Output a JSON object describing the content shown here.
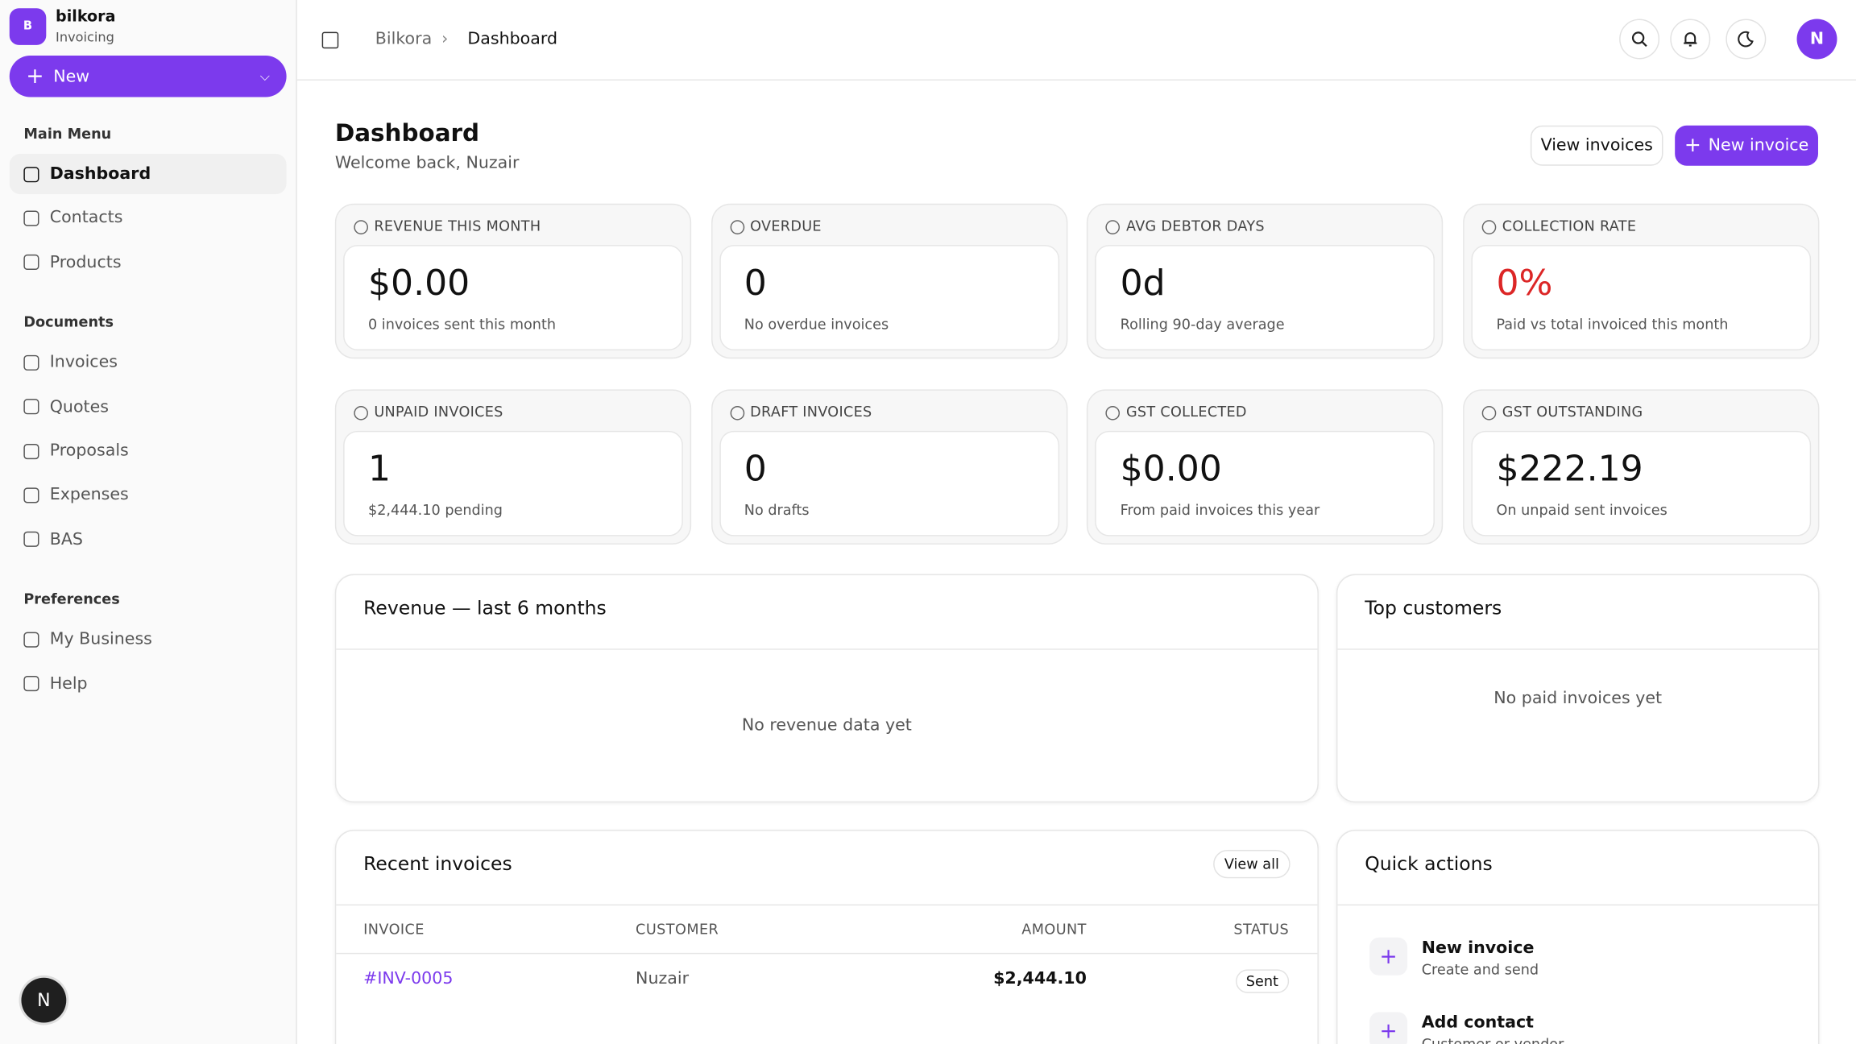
{
  "sidebar": {
    "brand": {
      "logo": "B",
      "name": "bilkora",
      "subtitle": "Invoicing"
    },
    "new_button": "New",
    "sections": [
      {
        "title": "Main Menu",
        "items": [
          "Dashboard",
          "Contacts",
          "Products"
        ]
      },
      {
        "title": "Documents",
        "items": [
          "Invoices",
          "Quotes",
          "Proposals",
          "Expenses",
          "BAS"
        ]
      },
      {
        "title": "Preferences",
        "items": [
          "My Business",
          "Help"
        ]
      }
    ],
    "avatar": "N"
  },
  "topbar": {
    "breadcrumbs": [
      "Bilkora",
      "Dashboard"
    ],
    "avatar": "N"
  },
  "header": {
    "title": "Dashboard",
    "subtitle": "Welcome back, Nuzair",
    "buttons": [
      "View invoices",
      "New invoice"
    ]
  },
  "stats": [
    {
      "label": "REVENUE THIS MONTH",
      "value": "$0.00",
      "note": "0 invoices sent this month"
    },
    {
      "label": "OVERDUE",
      "value": "0",
      "note": "No overdue invoices"
    },
    {
      "label": "AVG DEBTOR DAYS",
      "value": "0d",
      "note": "Rolling 90-day average"
    },
    {
      "label": "COLLECTION RATE",
      "value": "0%",
      "note": "Paid vs total invoiced this month"
    },
    {
      "label": "UNPAID INVOICES",
      "value": "1",
      "note": "$2,444.10 pending"
    },
    {
      "label": "DRAFT INVOICES",
      "value": "0",
      "note": "No drafts"
    },
    {
      "label": "GST COLLECTED",
      "value": "$0.00",
      "note": "From paid invoices this year"
    },
    {
      "label": "GST OUTSTANDING",
      "value": "$222.19",
      "note": "On unpaid sent invoices"
    }
  ],
  "revenue_panel": {
    "title": "Revenue — last 6 months",
    "empty": "No revenue data yet"
  },
  "top_customers": {
    "title": "Top customers",
    "empty": "No paid invoices yet"
  },
  "recent_invoices": {
    "title": "Recent invoices",
    "view_all": "View all",
    "columns": [
      "INVOICE",
      "CUSTOMER",
      "AMOUNT",
      "STATUS"
    ],
    "rows": [
      [
        "#INV-0005",
        "Nuzair",
        "$2,444.10",
        "Sent"
      ]
    ]
  },
  "quick_actions": {
    "title": "Quick actions",
    "items": [
      {
        "title": "New invoice",
        "subtitle": "Create and send"
      },
      {
        "title": "Add contact",
        "subtitle": "Customer or vendor"
      }
    ]
  }
}
